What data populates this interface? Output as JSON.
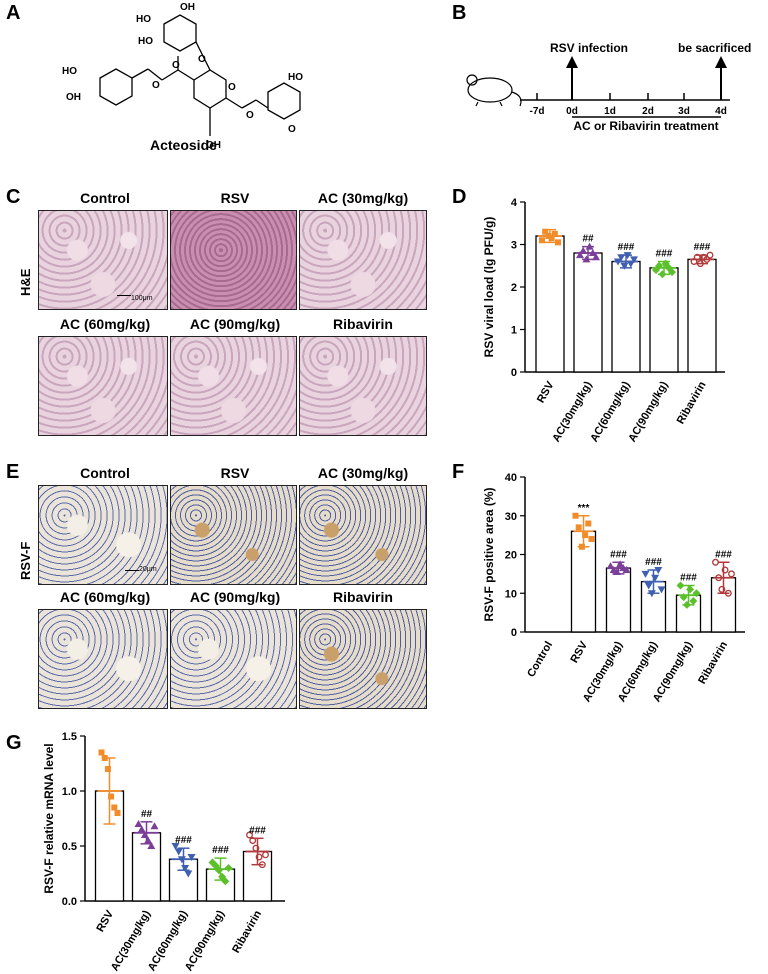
{
  "panels": {
    "A": "A",
    "B": "B",
    "C": "C",
    "D": "D",
    "E": "E",
    "F": "F",
    "G": "G"
  },
  "panel_a": {
    "compound_name": "Acteoside",
    "groups": [
      "HO",
      "OH",
      "HO",
      "HO",
      "O",
      "O",
      "O",
      "O",
      "O",
      "OH",
      "OH",
      "HO",
      "O"
    ]
  },
  "panel_b": {
    "days": [
      "-7d",
      "0d",
      "1d",
      "2d",
      "3d",
      "4d"
    ],
    "infection_label": "RSV infection",
    "sacrifice_label": "be sacrificed",
    "treatment_label": "AC or Ribavirin treatment"
  },
  "panel_c": {
    "row_label": "H&E",
    "titles": [
      "Control",
      "RSV",
      "AC (30mg/kg)",
      "AC (60mg/kg)",
      "AC (90mg/kg)",
      "Ribavirin"
    ],
    "scale_bar": "100μm"
  },
  "panel_e": {
    "row_label": "RSV-F",
    "titles": [
      "Control",
      "RSV",
      "AC (30mg/kg)",
      "AC (60mg/kg)",
      "AC (90mg/kg)",
      "Ribavirin"
    ],
    "scale_bar": "20μm"
  },
  "colors": {
    "RSV": "#f28c28",
    "AC30": "#7b3f98",
    "AC60": "#3f5fb0",
    "AC90": "#5cc02c",
    "Ribavirin": "#b03a3a"
  },
  "chart_data": [
    {
      "id": "D",
      "type": "bar",
      "ylabel": "RSV viral load (lg PFU/g)",
      "ylim": [
        0,
        4
      ],
      "yticks": [
        "0",
        "1",
        "2",
        "3",
        "4"
      ],
      "categories": [
        "RSV",
        "AC(30mg/kg)",
        "AC(60mg/kg)",
        "AC(90mg/kg)",
        "Ribavirin"
      ],
      "values": [
        3.2,
        2.8,
        2.6,
        2.45,
        2.65
      ],
      "errors": [
        0.15,
        0.15,
        0.15,
        0.15,
        0.1
      ],
      "points": [
        [
          3.1,
          3.3,
          3.2,
          3.15,
          3.25,
          3.05
        ],
        [
          2.75,
          2.85,
          2.65,
          2.95,
          2.8,
          2.7
        ],
        [
          2.6,
          2.7,
          2.5,
          2.75,
          2.55,
          2.65
        ],
        [
          2.4,
          2.5,
          2.3,
          2.55,
          2.45,
          2.35
        ],
        [
          2.6,
          2.7,
          2.55,
          2.7,
          2.65,
          2.75
        ]
      ],
      "annotations": [
        "",
        "##",
        "###",
        "###",
        "###"
      ],
      "grid": false
    },
    {
      "id": "F",
      "type": "bar",
      "ylabel": "RSV-F positive area (%)",
      "ylim": [
        0,
        40
      ],
      "yticks": [
        "0",
        "10",
        "20",
        "30",
        "40"
      ],
      "categories": [
        "Control",
        "RSV",
        "AC(30mg/kg)",
        "AC(60mg/kg)",
        "AC(90mg/kg)",
        "Ribavirin"
      ],
      "values": [
        0,
        26,
        16.5,
        13,
        9.5,
        14
      ],
      "errors": [
        0,
        4,
        1.5,
        3,
        2.5,
        4
      ],
      "points": [
        [],
        [
          30,
          27,
          22,
          25,
          28,
          24
        ],
        [
          17,
          16,
          15.5,
          17.5,
          16.5,
          16
        ],
        [
          15,
          12,
          10,
          14,
          16,
          11
        ],
        [
          12,
          9,
          7,
          11,
          8,
          10
        ],
        [
          18,
          14,
          11,
          16,
          10,
          15
        ]
      ],
      "annotations": [
        "",
        "***",
        "###",
        "###",
        "###",
        "###"
      ],
      "grid": false
    },
    {
      "id": "G",
      "type": "bar",
      "ylabel": "RSV-F relative mRNA level",
      "ylim": [
        0,
        1.5
      ],
      "yticks": [
        "0.0",
        "0.5",
        "1.0",
        "1.5"
      ],
      "categories": [
        "RSV",
        "AC(30mg/kg)",
        "AC(60mg/kg)",
        "AC(90mg/kg)",
        "Ribavirin"
      ],
      "values": [
        1.0,
        0.62,
        0.38,
        0.29,
        0.45
      ],
      "errors": [
        0.3,
        0.1,
        0.1,
        0.1,
        0.12
      ],
      "points": [
        [
          1.35,
          1.3,
          1.2,
          0.95,
          0.85,
          0.8
        ],
        [
          0.7,
          0.65,
          0.6,
          0.55,
          0.5,
          0.68
        ],
        [
          0.5,
          0.45,
          0.38,
          0.3,
          0.25,
          0.4
        ],
        [
          0.35,
          0.32,
          0.28,
          0.22,
          0.18,
          0.3
        ],
        [
          0.6,
          0.55,
          0.48,
          0.4,
          0.33,
          0.42
        ]
      ],
      "annotations": [
        "",
        "##",
        "###",
        "###",
        "###"
      ],
      "grid": false
    }
  ]
}
